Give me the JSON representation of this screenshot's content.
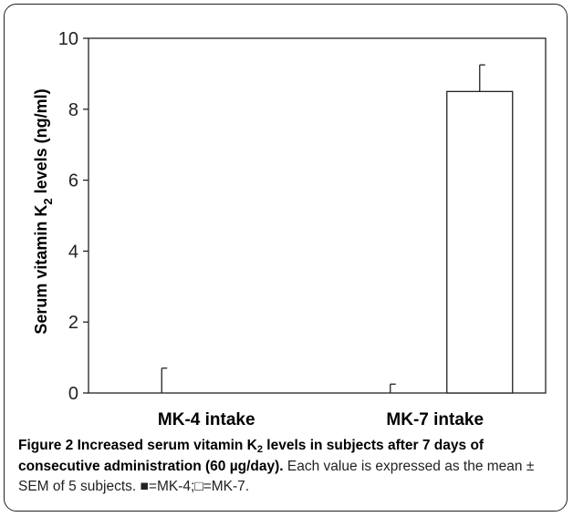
{
  "chart_data": {
    "type": "bar",
    "categories": [
      "MK-4 intake",
      "MK-7 intake"
    ],
    "series": [
      {
        "name": "MK-4",
        "values": [
          0,
          0
        ],
        "errors": [
          0.7,
          0.25
        ],
        "fill": "#000000"
      },
      {
        "name": "MK-7",
        "values": [
          0,
          8.5
        ],
        "errors": [
          0,
          0.75
        ],
        "fill": "#ffffff"
      }
    ],
    "ylabel_main": "Serum vitamin K",
    "ylabel_sub": "2",
    "ylabel_tail": " levels  (ng/ml)",
    "ylim": [
      0,
      10
    ],
    "yticks": [
      "0",
      "2",
      "4",
      "6",
      "8",
      "10"
    ]
  },
  "caption": {
    "title_a": "Figure 2 Increased serum vitamin K",
    "title_sub": "2",
    "title_b": " levels in subjects after 7 days of consecutive administration (60 µg/day).",
    "text": " Each value is expressed as the mean ± SEM of 5 subjects. ■=MK-4;□=MK-7."
  }
}
